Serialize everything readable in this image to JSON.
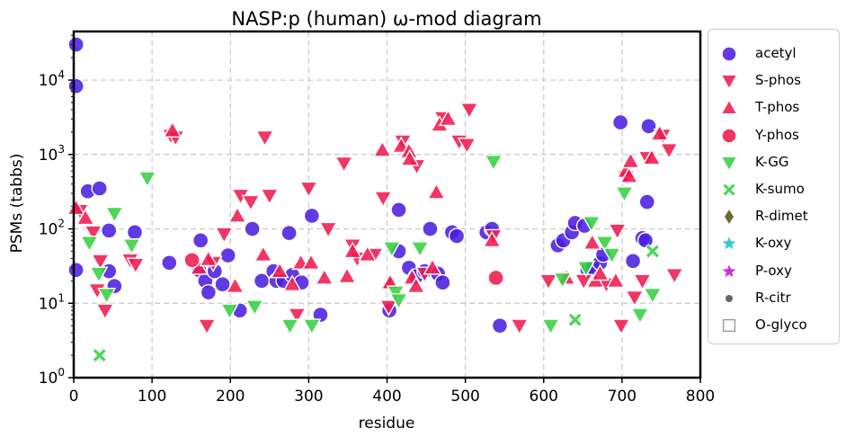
{
  "chart_data": {
    "type": "scatter",
    "title": "NASP:p (human) ω-mod diagram",
    "xlabel": "residue",
    "ylabel": "PSMs (tabbs)",
    "xlim": [
      0,
      800
    ],
    "ylim": [
      1,
      45000
    ],
    "y_scale": "log",
    "grid": true,
    "legend_position": "outside-right",
    "x_ticks": [
      "0",
      "100",
      "200",
      "300",
      "400",
      "500",
      "600",
      "700",
      "800"
    ],
    "y_ticks": [
      "10^0",
      "10^1",
      "10^2",
      "10^3",
      "10^4"
    ],
    "series": [
      {
        "name": "acetyl",
        "color": "#4b1fe0",
        "marker": "circle",
        "points": [
          [
            3,
            30000
          ],
          [
            3,
            8300
          ],
          [
            3,
            28
          ],
          [
            18,
            320
          ],
          [
            33,
            350
          ],
          [
            45,
            95
          ],
          [
            45,
            27
          ],
          [
            52,
            17
          ],
          [
            78,
            90
          ],
          [
            122,
            35
          ],
          [
            162,
            70
          ],
          [
            160,
            28
          ],
          [
            168,
            20
          ],
          [
            172,
            14
          ],
          [
            180,
            27
          ],
          [
            190,
            18
          ],
          [
            197,
            44
          ],
          [
            212,
            8
          ],
          [
            228,
            100
          ],
          [
            240,
            20
          ],
          [
            255,
            27
          ],
          [
            259,
            20
          ],
          [
            268,
            20
          ],
          [
            275,
            88
          ],
          [
            279,
            24
          ],
          [
            291,
            19
          ],
          [
            304,
            150
          ],
          [
            315,
            7
          ],
          [
            403,
            8
          ],
          [
            415,
            50
          ],
          [
            415,
            180
          ],
          [
            428,
            30
          ],
          [
            437,
            23
          ],
          [
            448,
            27
          ],
          [
            455,
            100
          ],
          [
            465,
            25
          ],
          [
            471,
            19
          ],
          [
            483,
            90
          ],
          [
            489,
            80
          ],
          [
            527,
            90
          ],
          [
            534,
            100
          ],
          [
            544,
            5
          ],
          [
            618,
            60
          ],
          [
            625,
            70
          ],
          [
            636,
            90
          ],
          [
            640,
            120
          ],
          [
            652,
            110
          ],
          [
            656,
            28
          ],
          [
            662,
            30
          ],
          [
            672,
            35
          ],
          [
            676,
            45
          ],
          [
            698,
            2700
          ],
          [
            714,
            37
          ],
          [
            726,
            75
          ],
          [
            730,
            70
          ],
          [
            732,
            230
          ],
          [
            734,
            2400
          ]
        ]
      },
      {
        "name": "S-phos",
        "color": "#f01a4e",
        "marker": "triangle-down",
        "points": [
          [
            8,
            175
          ],
          [
            25,
            90
          ],
          [
            30,
            15
          ],
          [
            34,
            37
          ],
          [
            40,
            8
          ],
          [
            72,
            38
          ],
          [
            79,
            33
          ],
          [
            124,
            1800
          ],
          [
            130,
            1700
          ],
          [
            170,
            5
          ],
          [
            178,
            35
          ],
          [
            192,
            85
          ],
          [
            213,
            280
          ],
          [
            226,
            230
          ],
          [
            244,
            1700
          ],
          [
            250,
            280
          ],
          [
            285,
            7
          ],
          [
            300,
            350
          ],
          [
            325,
            100
          ],
          [
            345,
            760
          ],
          [
            356,
            60
          ],
          [
            362,
            40
          ],
          [
            384,
            45
          ],
          [
            395,
            260
          ],
          [
            402,
            9
          ],
          [
            420,
            1500
          ],
          [
            438,
            700
          ],
          [
            448,
            25
          ],
          [
            471,
            3100
          ],
          [
            492,
            1500
          ],
          [
            502,
            1350
          ],
          [
            505,
            4000
          ],
          [
            536,
            80
          ],
          [
            569,
            5
          ],
          [
            606,
            20
          ],
          [
            651,
            20
          ],
          [
            680,
            18
          ],
          [
            694,
            95
          ],
          [
            699,
            5
          ],
          [
            705,
            500
          ],
          [
            716,
            12
          ],
          [
            726,
            20
          ],
          [
            732,
            900
          ],
          [
            752,
            1800
          ],
          [
            760,
            1150
          ],
          [
            767,
            24
          ]
        ]
      },
      {
        "name": "T-phos",
        "color": "#f01a4e",
        "marker": "triangle-up",
        "points": [
          [
            3,
            190
          ],
          [
            15,
            140
          ],
          [
            126,
            2100
          ],
          [
            160,
            30
          ],
          [
            172,
            39
          ],
          [
            206,
            17
          ],
          [
            209,
            150
          ],
          [
            242,
            45
          ],
          [
            263,
            27
          ],
          [
            279,
            18
          ],
          [
            290,
            35
          ],
          [
            303,
            35
          ],
          [
            320,
            22
          ],
          [
            349,
            23
          ],
          [
            356,
            50
          ],
          [
            375,
            45
          ],
          [
            394,
            1150
          ],
          [
            402,
            19
          ],
          [
            404,
            19
          ],
          [
            418,
            1300
          ],
          [
            428,
            1100
          ],
          [
            429,
            870
          ],
          [
            432,
            22
          ],
          [
            437,
            17
          ],
          [
            458,
            30
          ],
          [
            463,
            310
          ],
          [
            467,
            2500
          ],
          [
            478,
            3000
          ],
          [
            534,
            70
          ],
          [
            629,
            22
          ],
          [
            662,
            65
          ],
          [
            666,
            20
          ],
          [
            672,
            25
          ],
          [
            692,
            20
          ],
          [
            705,
            600
          ],
          [
            709,
            510
          ],
          [
            711,
            810
          ],
          [
            738,
            900
          ],
          [
            748,
            1900
          ]
        ]
      },
      {
        "name": "Y-phos",
        "color": "#f01a4e",
        "marker": "circle",
        "points": [
          [
            151,
            38
          ],
          [
            539,
            22
          ]
        ]
      },
      {
        "name": "K-GG",
        "color": "#35d040",
        "marker": "triangle-down",
        "points": [
          [
            20,
            65
          ],
          [
            32,
            25
          ],
          [
            42,
            13
          ],
          [
            52,
            160
          ],
          [
            74,
            60
          ],
          [
            94,
            480
          ],
          [
            199,
            8
          ],
          [
            231,
            9
          ],
          [
            276,
            5
          ],
          [
            304,
            5
          ],
          [
            406,
            55
          ],
          [
            411,
            14
          ],
          [
            415,
            11
          ],
          [
            442,
            55
          ],
          [
            536,
            800
          ],
          [
            609,
            5
          ],
          [
            624,
            21
          ],
          [
            654,
            30
          ],
          [
            661,
            120
          ],
          [
            678,
            65
          ],
          [
            687,
            45
          ],
          [
            703,
            300
          ],
          [
            723,
            7
          ],
          [
            739,
            13
          ]
        ]
      },
      {
        "name": "K-sumo",
        "color": "#35d040",
        "marker": "x",
        "points": [
          [
            33,
            2
          ],
          [
            640,
            6
          ],
          [
            739,
            50
          ]
        ]
      },
      {
        "name": "R-dimet",
        "color": "#6b6b2f",
        "marker": "diamond",
        "points": []
      },
      {
        "name": "K-oxy",
        "color": "#30ccd8",
        "marker": "star",
        "points": []
      },
      {
        "name": "P-oxy",
        "color": "#cc33e0",
        "marker": "star",
        "points": []
      },
      {
        "name": "R-citr",
        "color": "#666666",
        "marker": "dot",
        "points": []
      },
      {
        "name": "O-glyco",
        "color": "#999999",
        "marker": "square-open",
        "points": []
      }
    ]
  }
}
